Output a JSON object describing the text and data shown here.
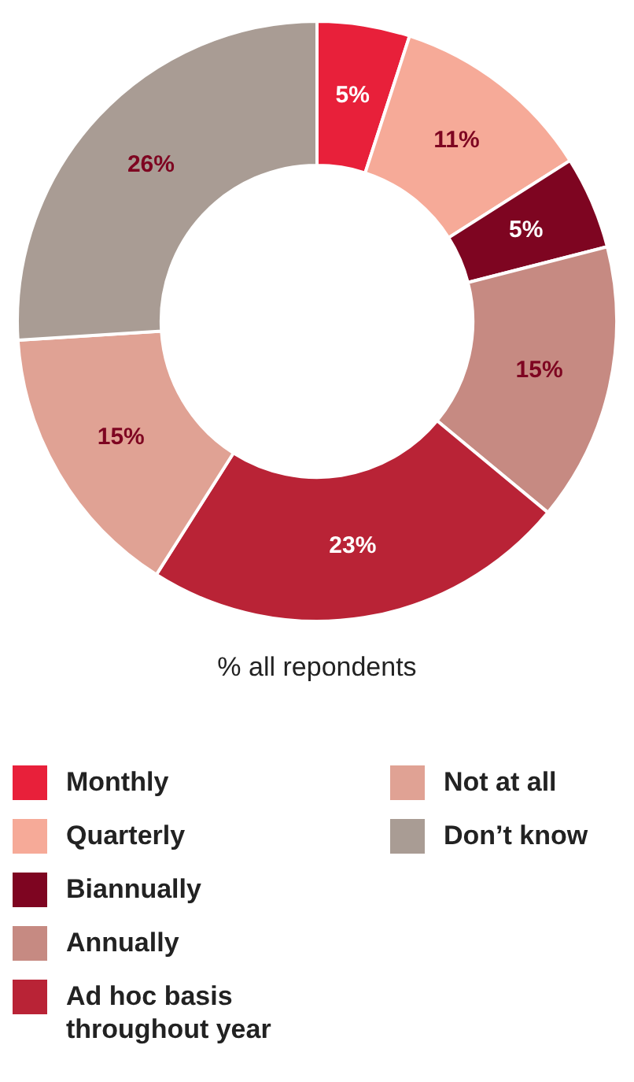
{
  "chart_data": {
    "type": "donut",
    "categories": [
      "Monthly",
      "Quarterly",
      "Biannually",
      "Annually",
      "Ad hoc basis throughout year",
      "Not at all",
      "Don’t know"
    ],
    "values": [
      5,
      11,
      5,
      15,
      23,
      15,
      26
    ],
    "colors": [
      "#e8203a",
      "#f6aa98",
      "#7e0521",
      "#c68a82",
      "#b92336",
      "#e0a294",
      "#a99c94"
    ],
    "value_labels": [
      "5%",
      "11%",
      "5%",
      "15%",
      "23%",
      "15%",
      "26%"
    ],
    "annotations": [
      "% all repondents"
    ],
    "legend": "bottom"
  }
}
